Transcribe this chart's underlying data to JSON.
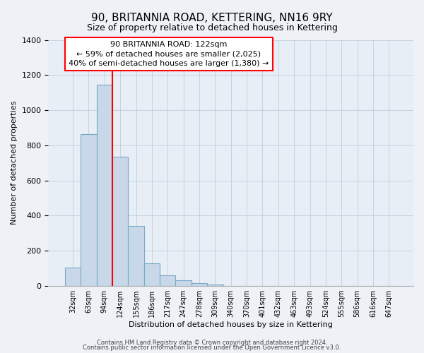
{
  "title": "90, BRITANNIA ROAD, KETTERING, NN16 9RY",
  "subtitle": "Size of property relative to detached houses in Kettering",
  "xlabel": "Distribution of detached houses by size in Kettering",
  "ylabel": "Number of detached properties",
  "bar_labels": [
    "32sqm",
    "63sqm",
    "94sqm",
    "124sqm",
    "155sqm",
    "186sqm",
    "217sqm",
    "247sqm",
    "278sqm",
    "309sqm",
    "340sqm",
    "370sqm",
    "401sqm",
    "432sqm",
    "463sqm",
    "493sqm",
    "524sqm",
    "555sqm",
    "586sqm",
    "616sqm",
    "647sqm"
  ],
  "bar_values": [
    105,
    865,
    1145,
    735,
    340,
    130,
    60,
    33,
    17,
    10,
    0,
    0,
    0,
    0,
    0,
    0,
    0,
    0,
    0,
    0,
    0
  ],
  "bar_color": "#c8d8e8",
  "bar_edge_color": "#7aA8c8",
  "ylim": [
    0,
    1400
  ],
  "yticks": [
    0,
    200,
    400,
    600,
    800,
    1000,
    1200,
    1400
  ],
  "red_line_index": 3,
  "annotation_title": "90 BRITANNIA ROAD: 122sqm",
  "annotation_line1": "← 59% of detached houses are smaller (2,025)",
  "annotation_line2": "40% of semi-detached houses are larger (1,380) →",
  "footer1": "Contains HM Land Registry data © Crown copyright and database right 2024.",
  "footer2": "Contains public sector information licensed under the Open Government Licence v3.0.",
  "background_color": "#eef2f7",
  "plot_background_color": "#e8eef5"
}
